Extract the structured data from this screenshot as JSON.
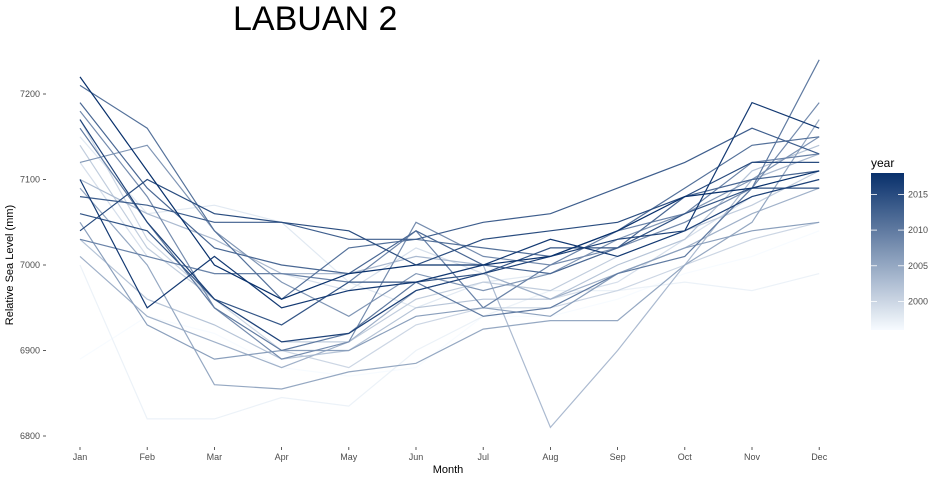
{
  "chart_data": {
    "type": "line",
    "title": "LABUAN 2",
    "xlabel": "Month",
    "ylabel": "Relative Sea Level (mm)",
    "categories": [
      "Jan",
      "Feb",
      "Mar",
      "Apr",
      "May",
      "Jun",
      "Jul",
      "Aug",
      "Sep",
      "Oct",
      "Nov",
      "Dec"
    ],
    "ylim": [
      6780,
      7240
    ],
    "yticks": [
      6800,
      6900,
      7000,
      7100,
      7200
    ],
    "grid": false,
    "legend": {
      "title": "year",
      "position": "right",
      "type": "colorbar",
      "range": [
        1996,
        2018
      ],
      "ticks": [
        2000,
        2005,
        2010,
        2015
      ],
      "low_color": "#f7fbff",
      "high_color": "#08306b"
    },
    "series": [
      {
        "year": 1996,
        "values": [
          6890,
          6940,
          6920,
          6880,
          6870,
          6880,
          6940,
          6940,
          6960,
          6990,
          7010,
          7040
        ]
      },
      {
        "year": 1997,
        "values": [
          7000,
          6820,
          6820,
          6845,
          6835,
          6900,
          6940,
          6970,
          6970,
          6980,
          6970,
          6990
        ]
      },
      {
        "year": 1998,
        "values": [
          7150,
          7060,
          7070,
          7050,
          6980,
          6950,
          6980,
          6990,
          7020,
          7050,
          7090,
          7090
        ]
      },
      {
        "year": 1999,
        "values": [
          7120,
          7010,
          6990,
          6990,
          6970,
          7020,
          6990,
          6960,
          6980,
          7030,
          7080,
          7100
        ]
      },
      {
        "year": 2000,
        "values": [
          7170,
          7030,
          6960,
          6900,
          6880,
          6930,
          6950,
          6950,
          6970,
          7000,
          7030,
          7050
        ]
      },
      {
        "year": 2001,
        "values": [
          7140,
          7020,
          6960,
          6910,
          6910,
          6960,
          6980,
          6970,
          7010,
          7040,
          7070,
          7110
        ]
      },
      {
        "year": 2002,
        "values": [
          7030,
          6960,
          6930,
          6890,
          6900,
          6950,
          6960,
          6960,
          7000,
          7030,
          7110,
          7140
        ]
      },
      {
        "year": 2003,
        "values": [
          7100,
          7060,
          7030,
          6990,
          6990,
          7010,
          7000,
          6810,
          6900,
          7000,
          7100,
          7130
        ]
      },
      {
        "year": 2004,
        "values": [
          7010,
          6940,
          6910,
          6880,
          6910,
          6970,
          6990,
          6960,
          6990,
          7020,
          7060,
          7090
        ]
      },
      {
        "year": 2005,
        "values": [
          7090,
          7000,
          6860,
          6855,
          6875,
          6885,
          6925,
          6935,
          6935,
          7000,
          7050,
          7170
        ]
      },
      {
        "year": 2006,
        "values": [
          7050,
          6930,
          6890,
          6900,
          6900,
          6940,
          6950,
          6940,
          6990,
          7020,
          7040,
          7050
        ]
      },
      {
        "year": 2007,
        "values": [
          7120,
          7140,
          7040,
          6980,
          6940,
          6990,
          6970,
          6990,
          7030,
          7060,
          7100,
          7150
        ]
      },
      {
        "year": 2008,
        "values": [
          7180,
          7080,
          6950,
          6890,
          6910,
          7050,
          7010,
          7000,
          7020,
          7050,
          7090,
          7190
        ]
      },
      {
        "year": 2009,
        "values": [
          7030,
          7010,
          6990,
          6990,
          6980,
          7040,
          6950,
          7000,
          7040,
          7060,
          7120,
          7130
        ]
      },
      {
        "year": 2010,
        "values": [
          7160,
          7050,
          6950,
          6900,
          6920,
          6980,
          6940,
          6950,
          6990,
          7010,
          7090,
          7240
        ]
      },
      {
        "year": 2011,
        "values": [
          7210,
          7160,
          7040,
          6960,
          7020,
          7030,
          7020,
          7010,
          7040,
          7090,
          7140,
          7150
        ]
      },
      {
        "year": 2012,
        "values": [
          7190,
          7090,
          7020,
          7000,
          6990,
          7040,
          7000,
          6990,
          7020,
          7080,
          7100,
          7110
        ]
      },
      {
        "year": 2013,
        "values": [
          7080,
          7070,
          7050,
          7050,
          7030,
          7030,
          7050,
          7060,
          7090,
          7120,
          7160,
          7130
        ]
      },
      {
        "year": 2014,
        "values": [
          7060,
          7040,
          6960,
          6930,
          6980,
          6980,
          6990,
          7020,
          7020,
          7060,
          7090,
          7090
        ]
      },
      {
        "year": 2015,
        "values": [
          7040,
          7100,
          7060,
          7050,
          7040,
          7000,
          7030,
          7040,
          7050,
          7080,
          7120,
          7120
        ]
      },
      {
        "year": 2016,
        "values": [
          7170,
          7050,
          6960,
          6910,
          6920,
          6970,
          6990,
          7010,
          7030,
          7040,
          7080,
          7100
        ]
      },
      {
        "year": 2017,
        "values": [
          7100,
          6950,
          7010,
          6950,
          6970,
          6980,
          7000,
          7030,
          7010,
          7040,
          7190,
          7160
        ]
      },
      {
        "year": 2018,
        "values": [
          7220,
          7110,
          7000,
          6960,
          6990,
          7000,
          7000,
          7010,
          7040,
          7080,
          7090,
          7110
        ]
      }
    ]
  }
}
